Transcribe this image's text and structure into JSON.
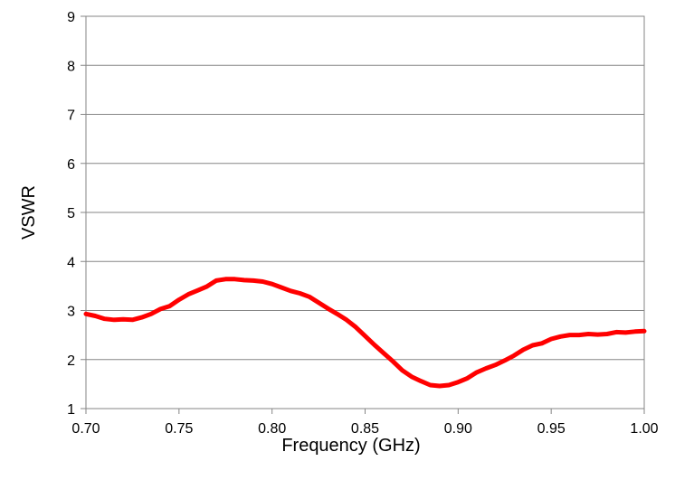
{
  "chart_data": {
    "type": "line",
    "title": "",
    "xlabel": "Frequency (GHz)",
    "ylabel": "VSWR",
    "xlim": [
      0.7,
      1.0
    ],
    "ylim": [
      1,
      9
    ],
    "x_ticks": [
      "0.70",
      "0.75",
      "0.80",
      "0.85",
      "0.90",
      "0.95",
      "1.00"
    ],
    "y_ticks": [
      "1",
      "2",
      "3",
      "4",
      "5",
      "6",
      "7",
      "8",
      "9"
    ],
    "grid": "horizontal",
    "legend": "none",
    "series": [
      {
        "color": "#ff0000",
        "x": [
          0.7,
          0.705,
          0.71,
          0.715,
          0.72,
          0.725,
          0.73,
          0.735,
          0.74,
          0.745,
          0.75,
          0.755,
          0.76,
          0.765,
          0.77,
          0.775,
          0.78,
          0.785,
          0.79,
          0.795,
          0.8,
          0.805,
          0.81,
          0.815,
          0.82,
          0.825,
          0.83,
          0.835,
          0.84,
          0.845,
          0.85,
          0.855,
          0.86,
          0.865,
          0.87,
          0.875,
          0.88,
          0.885,
          0.89,
          0.895,
          0.9,
          0.905,
          0.91,
          0.915,
          0.92,
          0.925,
          0.93,
          0.935,
          0.94,
          0.945,
          0.95,
          0.955,
          0.96,
          0.965,
          0.97,
          0.975,
          0.98,
          0.985,
          0.99,
          0.995,
          1.0
        ],
        "y": [
          2.93,
          2.89,
          2.83,
          2.81,
          2.82,
          2.81,
          2.86,
          2.93,
          3.03,
          3.09,
          3.22,
          3.33,
          3.41,
          3.49,
          3.61,
          3.64,
          3.64,
          3.62,
          3.61,
          3.59,
          3.54,
          3.47,
          3.4,
          3.35,
          3.28,
          3.16,
          3.04,
          2.93,
          2.81,
          2.66,
          2.48,
          2.3,
          2.13,
          1.96,
          1.78,
          1.65,
          1.56,
          1.48,
          1.46,
          1.48,
          1.54,
          1.62,
          1.74,
          1.82,
          1.89,
          1.98,
          2.08,
          2.2,
          2.29,
          2.33,
          2.42,
          2.47,
          2.5,
          2.5,
          2.52,
          2.51,
          2.52,
          2.56,
          2.55,
          2.57,
          2.58
        ]
      }
    ]
  }
}
